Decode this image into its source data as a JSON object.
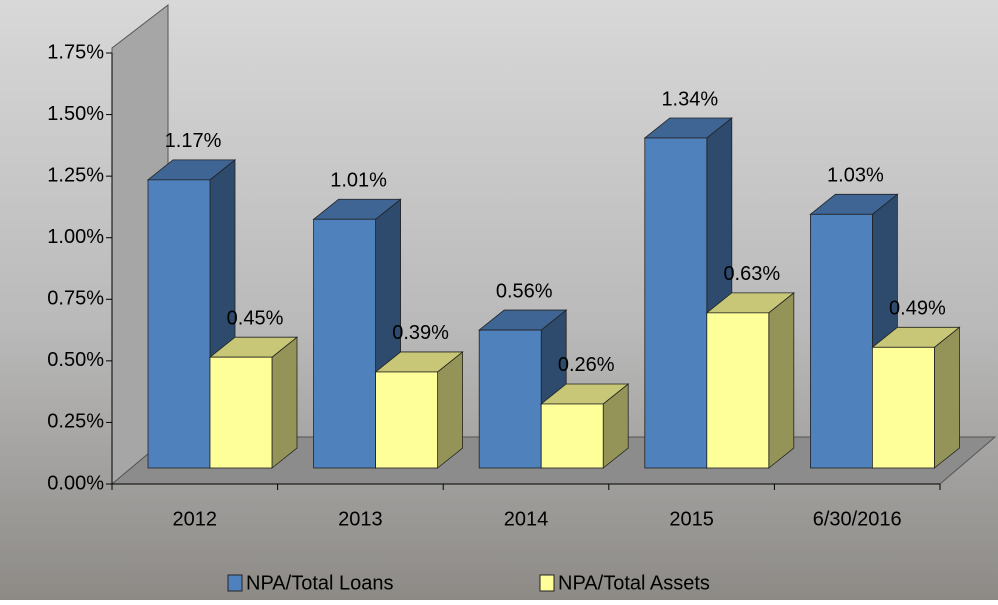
{
  "chart_data": {
    "type": "bar3d",
    "categories": [
      "2012",
      "2013",
      "2014",
      "2015",
      "6/30/2016"
    ],
    "series": [
      {
        "name": "NPA/Total Loans",
        "color": "#4f81bd",
        "values": [
          1.17,
          1.01,
          0.56,
          1.34,
          1.03
        ],
        "value_labels": [
          "1.17%",
          "1.01%",
          "0.56%",
          "1.34%",
          "1.03%"
        ]
      },
      {
        "name": "NPA/Total Assets",
        "color": "#ffff99",
        "values": [
          0.45,
          0.39,
          0.26,
          0.63,
          0.49
        ],
        "value_labels": [
          "0.45%",
          "0.39%",
          "0.26%",
          "0.63%",
          "0.49%"
        ]
      }
    ],
    "ylim": [
      0,
      1.75
    ],
    "yticks": [
      {
        "value": 0,
        "label": "0.00%"
      },
      {
        "value": 0.25,
        "label": "0.25%"
      },
      {
        "value": 0.5,
        "label": "0.50%"
      },
      {
        "value": 0.75,
        "label": "0.75%"
      },
      {
        "value": 1,
        "label": "1.00%"
      },
      {
        "value": 1.25,
        "label": "1.25%"
      },
      {
        "value": 1.5,
        "label": "1.50%"
      },
      {
        "value": 1.75,
        "label": "1.75%"
      }
    ],
    "legend": "bottom"
  }
}
